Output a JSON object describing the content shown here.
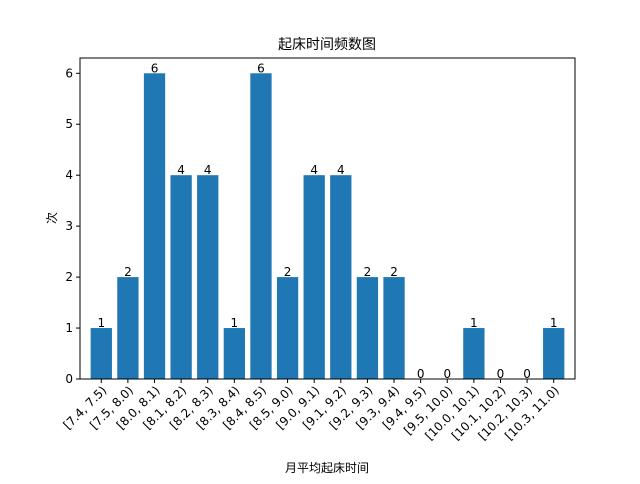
{
  "chart_data": {
    "type": "bar",
    "title": "起床时间频数图",
    "xlabel": "月平均起床时间",
    "ylabel": "次",
    "categories": [
      "[7.4, 7.5)",
      "[7.5, 8.0)",
      "[8.0, 8.1)",
      "[8.1, 8.2)",
      "[8.2, 8.3)",
      "[8.3, 8.4)",
      "[8.4, 8.5)",
      "[8.5, 9.0)",
      "[9.0, 9.1)",
      "[9.1, 9.2)",
      "[9.2, 9.3)",
      "[9.3, 9.4)",
      "[9.4, 9.5)",
      "[9.5, 10.0)",
      "[10.0, 10.1)",
      "[10.1, 10.2)",
      "[10.2, 10.3)",
      "[10.3, 11.0)"
    ],
    "values": [
      1,
      2,
      6,
      4,
      4,
      1,
      6,
      2,
      4,
      4,
      2,
      2,
      0,
      0,
      1,
      0,
      0,
      1
    ],
    "ylim": [
      0,
      6.3
    ],
    "yticks": [
      0,
      1,
      2,
      3,
      4,
      5,
      6
    ],
    "grid": false,
    "bar_color": "#1f77b4"
  }
}
